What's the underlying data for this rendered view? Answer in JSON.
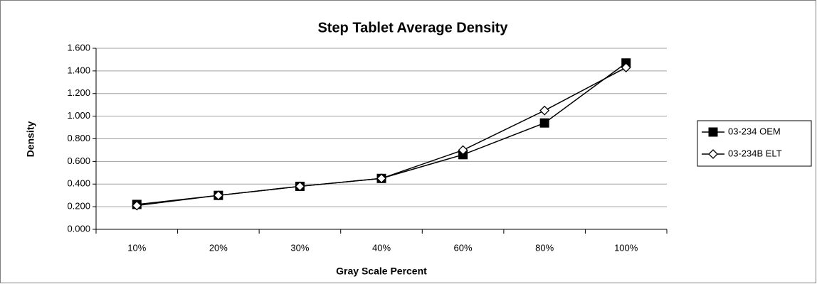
{
  "chart_data": {
    "type": "line",
    "title": "Step Tablet Average Density",
    "x_label": "Gray Scale Percent",
    "y_label": "Density",
    "categories": [
      "10%",
      "20%",
      "30%",
      "40%",
      "60%",
      "80%",
      "100%"
    ],
    "series": [
      {
        "name": "03-234 OEM",
        "color": "#000000",
        "marker": "square",
        "values": [
          0.22,
          0.3,
          0.38,
          0.45,
          0.66,
          0.94,
          1.47
        ]
      },
      {
        "name": "03-234B ELT",
        "color": "#000000",
        "marker": "diamond",
        "values": [
          0.21,
          0.3,
          0.38,
          0.45,
          0.7,
          1.05,
          1.43
        ]
      }
    ],
    "ylim": [
      0,
      1.6
    ],
    "yticks": [
      {
        "value": 0,
        "label": "0.000"
      },
      {
        "value": 0.2,
        "label": "0.200"
      },
      {
        "value": 0.4,
        "label": "0.400"
      },
      {
        "value": 0.6,
        "label": "0.600"
      },
      {
        "value": 0.8,
        "label": "0.800"
      },
      {
        "value": 1.0,
        "label": "1.000"
      },
      {
        "value": 1.2,
        "label": "1.200"
      },
      {
        "value": 1.4,
        "label": "1.400"
      },
      {
        "value": 1.6,
        "label": "1.600"
      }
    ],
    "grid": true,
    "legend": "right"
  }
}
